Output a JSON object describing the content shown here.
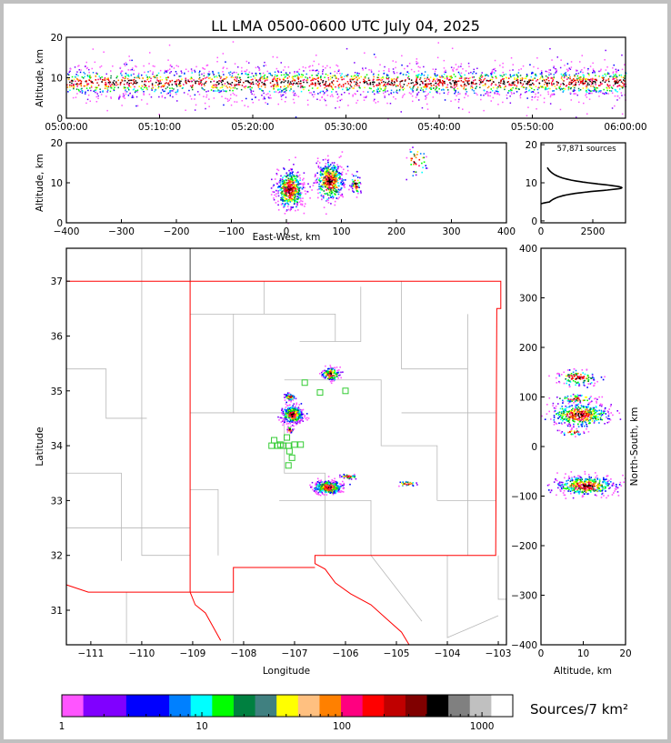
{
  "title": "LL LMA 0500-0600 UTC July 04, 2025",
  "chart_data": [
    {
      "panel": "time-altitude",
      "type": "scatter",
      "ylabel": "Altitude, km",
      "ylim": [
        0,
        20
      ],
      "yticks": [
        "0",
        "10",
        "20"
      ],
      "xlim": [
        "05:00:00",
        "06:00:00"
      ],
      "xticks": [
        "05:00:00",
        "05:10:00",
        "05:20:00",
        "05:30:00",
        "05:40:00",
        "05:50:00",
        "06:00:00"
      ],
      "distribution": {
        "alt_mean_km": 9,
        "alt_spread_km": 2.5
      }
    },
    {
      "panel": "eastwest-altitude",
      "type": "scatter",
      "xlabel": "East-West, km",
      "ylabel": "Altitude, km",
      "xlim": [
        -400,
        400
      ],
      "ylim": [
        0,
        20
      ],
      "xticks": [
        "−400",
        "−300",
        "−200",
        "−100",
        "0",
        "100",
        "200",
        "300",
        "400"
      ],
      "yticks": [
        "0",
        "10",
        "20"
      ],
      "clusters": [
        {
          "x": 5,
          "alt": 8.5,
          "sx": 12,
          "salt": 2.5,
          "n": 500
        },
        {
          "x": 78,
          "alt": 10.5,
          "sx": 12,
          "salt": 2.5,
          "n": 450
        },
        {
          "x": 125,
          "alt": 10,
          "sx": 4,
          "salt": 1.5,
          "n": 60
        },
        {
          "x": 235,
          "alt": 15.5,
          "sx": 10,
          "salt": 2,
          "n": 40
        }
      ]
    },
    {
      "panel": "altitude-histogram",
      "type": "line",
      "annotation": "57,871 sources",
      "xlim": [
        0,
        4080
      ],
      "ylim": [
        -0.5,
        20.5
      ],
      "xticks": [
        "0",
        "2500"
      ],
      "yticks": [
        "0",
        "10",
        "20"
      ],
      "profile": {
        "peak_alt_km": 8.7,
        "peak_count": 3900,
        "below_width_km": 1.4,
        "above_width_km": 1.7
      }
    },
    {
      "panel": "plan-view",
      "type": "scatter",
      "xlabel": "Longitude",
      "ylabel": "Latitude",
      "xlim": [
        -111.48,
        -102.84
      ],
      "ylim": [
        30.37,
        37.6
      ],
      "xticks": [
        "−111",
        "−110",
        "−109",
        "−108",
        "−107",
        "−106",
        "−105",
        "−104",
        "−103"
      ],
      "yticks": [
        "31",
        "32",
        "33",
        "34",
        "35",
        "36",
        "37"
      ],
      "clusters": [
        {
          "lon": -107.05,
          "lat": 34.58,
          "slon": 0.1,
          "slat": 0.08,
          "n": 500
        },
        {
          "lon": -107.1,
          "lat": 34.9,
          "slon": 0.05,
          "slat": 0.03,
          "n": 60
        },
        {
          "lon": -107.1,
          "lat": 34.3,
          "slon": 0.03,
          "slat": 0.03,
          "n": 30
        },
        {
          "lon": -106.3,
          "lat": 35.32,
          "slon": 0.08,
          "slat": 0.06,
          "n": 150
        },
        {
          "lon": -106.35,
          "lat": 33.25,
          "slon": 0.14,
          "slat": 0.06,
          "n": 420
        },
        {
          "lon": -105.95,
          "lat": 33.45,
          "slon": 0.08,
          "slat": 0.02,
          "n": 50
        },
        {
          "lon": -104.8,
          "lat": 33.32,
          "slon": 0.1,
          "slat": 0.02,
          "n": 30
        }
      ],
      "stations": [
        [
          -107.4,
          34.1
        ],
        [
          -107.45,
          34.0
        ],
        [
          -107.33,
          34.0
        ],
        [
          -107.22,
          34.0
        ],
        [
          -107.15,
          34.15
        ],
        [
          -107.12,
          34.0
        ],
        [
          -107.0,
          34.02
        ],
        [
          -106.88,
          34.02
        ],
        [
          -107.1,
          33.9
        ],
        [
          -107.05,
          33.78
        ],
        [
          -107.12,
          33.64
        ],
        [
          -106.8,
          35.15
        ],
        [
          -106.5,
          34.97
        ],
        [
          -106.0,
          35.0
        ],
        [
          -107.28,
          34.02
        ]
      ],
      "station_color": "#33cc33",
      "boundary_color": "#ff0000"
    },
    {
      "panel": "altitude-northsouth",
      "type": "scatter",
      "xlabel": "Altitude, km",
      "ylabel": "North-South, km",
      "xlim": [
        0,
        20
      ],
      "ylim": [
        -400,
        400
      ],
      "xticks": [
        "0",
        "10",
        "20"
      ],
      "yticks": [
        "−400",
        "−300",
        "−200",
        "−100",
        "0",
        "100",
        "200",
        "300",
        "400"
      ],
      "clusters": [
        {
          "alt": 9,
          "y": 65,
          "salt": 3.5,
          "sy": 12,
          "n": 450
        },
        {
          "alt": 8.5,
          "y": 140,
          "salt": 2.5,
          "sy": 8,
          "n": 130
        },
        {
          "alt": 8,
          "y": 98,
          "salt": 2.5,
          "sy": 4,
          "n": 60
        },
        {
          "alt": 10.5,
          "y": -78,
          "salt": 3.5,
          "sy": 10,
          "n": 420
        },
        {
          "alt": 7.5,
          "y": 30,
          "salt": 1.5,
          "sy": 3,
          "n": 25
        }
      ]
    }
  ],
  "colorbar": {
    "label": "Sources/7 km²",
    "ticks": [
      "1",
      "10",
      "100",
      "1000"
    ],
    "range": [
      1,
      1660
    ],
    "scale": "log",
    "colors": [
      "#ff55ff",
      "#8000ff",
      "#8000ff",
      "#0000ff",
      "#0000ff",
      "#0080ff",
      "#00ffff",
      "#00ff00",
      "#008040",
      "#408080",
      "#ffff00",
      "#ffc080",
      "#ff8000",
      "#ff0080",
      "#ff0000",
      "#c00000",
      "#800000",
      "#000000",
      "#808080",
      "#c0c0c0",
      "#ffffff"
    ]
  }
}
